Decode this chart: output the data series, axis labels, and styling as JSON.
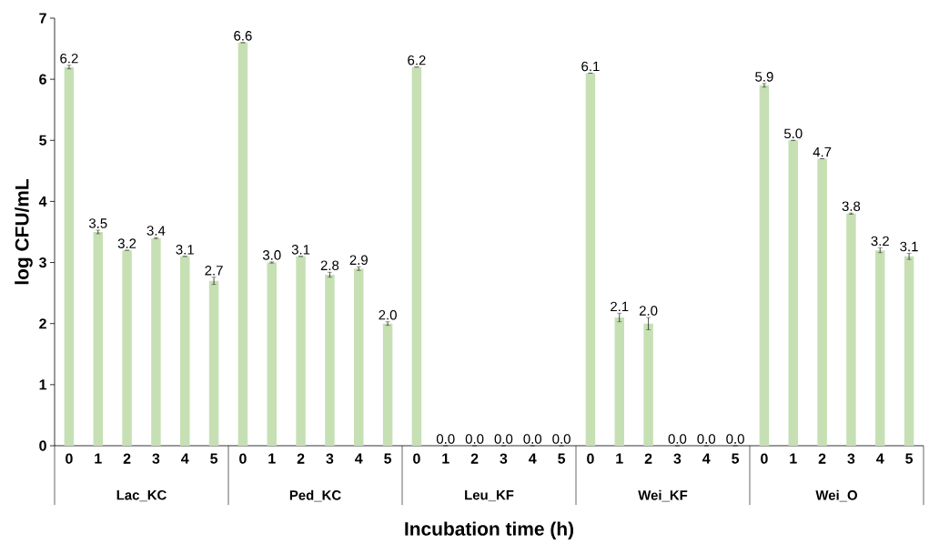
{
  "chart_data": {
    "type": "bar",
    "xlabel": "Incubation time (h)",
    "ylabel": "log CFU/mL",
    "categories": [
      "0",
      "1",
      "2",
      "3",
      "4",
      "5",
      "0",
      "1",
      "2",
      "3",
      "4",
      "5",
      "0",
      "1",
      "2",
      "3",
      "4",
      "5",
      "0",
      "1",
      "2",
      "3",
      "4",
      "5",
      "0",
      "1",
      "2",
      "3",
      "4",
      "5"
    ],
    "annotations": [
      "Lac_KC",
      "Ped_KC",
      "Leu_KF",
      "Wei_KF",
      "Wei_O"
    ],
    "values": [
      6.2,
      3.5,
      3.2,
      3.4,
      3.1,
      2.7,
      6.6,
      3.0,
      3.1,
      2.8,
      2.9,
      2.0,
      6.2,
      0,
      0,
      0,
      0,
      0,
      6.1,
      2.1,
      2.0,
      0,
      0,
      0,
      5.9,
      5.0,
      4.7,
      3.8,
      3.2,
      3.1
    ],
    "errors": [
      0.03,
      0.03,
      null,
      0.01,
      null,
      0.06,
      null,
      0.01,
      null,
      0.04,
      0.03,
      0.03,
      null,
      null,
      null,
      null,
      null,
      null,
      null,
      0.07,
      0.1,
      null,
      null,
      null,
      0.03,
      null,
      null,
      0.01,
      0.04,
      0.05
    ],
    "value_labels": [
      "6.2",
      "3.5",
      "3.2",
      "3.4",
      "3.1",
      "2.7",
      "6.6",
      "3.0",
      "3.1",
      "2.8",
      "2.9",
      "2.0",
      "6.2",
      "0.0",
      "0.0",
      "0.0",
      "0.0",
      "0.0",
      "6.1",
      "2.1",
      "2.0",
      "0.0",
      "0.0",
      "0.0",
      "5.9",
      "5.0",
      "4.7",
      "3.8",
      "3.2",
      "3.1"
    ],
    "color": "#c6e0b4",
    "ylim": [
      0,
      7
    ],
    "yticks": [
      0,
      1,
      2,
      3,
      4,
      5,
      6,
      7
    ],
    "grid": false
  }
}
